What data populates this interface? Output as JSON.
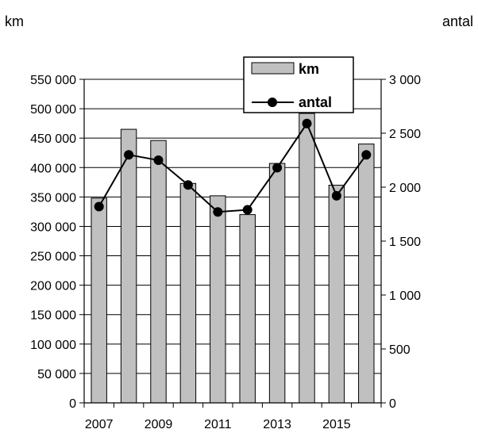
{
  "chart_data": {
    "type": "bar",
    "title": "",
    "left_unit": "km",
    "right_unit": "antal",
    "x": [
      2007,
      2008,
      2009,
      2010,
      2011,
      2012,
      2013,
      2014,
      2015,
      2016
    ],
    "x_tick_labels": [
      "2007",
      "2009",
      "2011",
      "2013",
      "2015"
    ],
    "series": [
      {
        "name": "km",
        "type": "bar",
        "axis": "left",
        "color": "#c0c0c0",
        "values": [
          348000,
          465000,
          446000,
          373000,
          352000,
          320000,
          407000,
          492000,
          370000,
          440000
        ]
      },
      {
        "name": "antal",
        "type": "line",
        "axis": "right",
        "color": "#000000",
        "values": [
          1820,
          2300,
          2250,
          2020,
          1770,
          1790,
          2180,
          2590,
          1920,
          2300
        ]
      }
    ],
    "y_left": {
      "min": 0,
      "max": 550000,
      "ticks": [
        "0",
        "50 000",
        "100 000",
        "150 000",
        "200 000",
        "250 000",
        "300 000",
        "350 000",
        "400 000",
        "450 000",
        "500 000",
        "550 000"
      ]
    },
    "y_right": {
      "min": 0,
      "max": 3000,
      "ticks": [
        "0",
        "500",
        "1 000",
        "1 500",
        "2 000",
        "2 500",
        "3 000"
      ]
    },
    "grid": true,
    "legend": {
      "position": "top-right",
      "entries": [
        "km",
        "antal"
      ]
    }
  }
}
